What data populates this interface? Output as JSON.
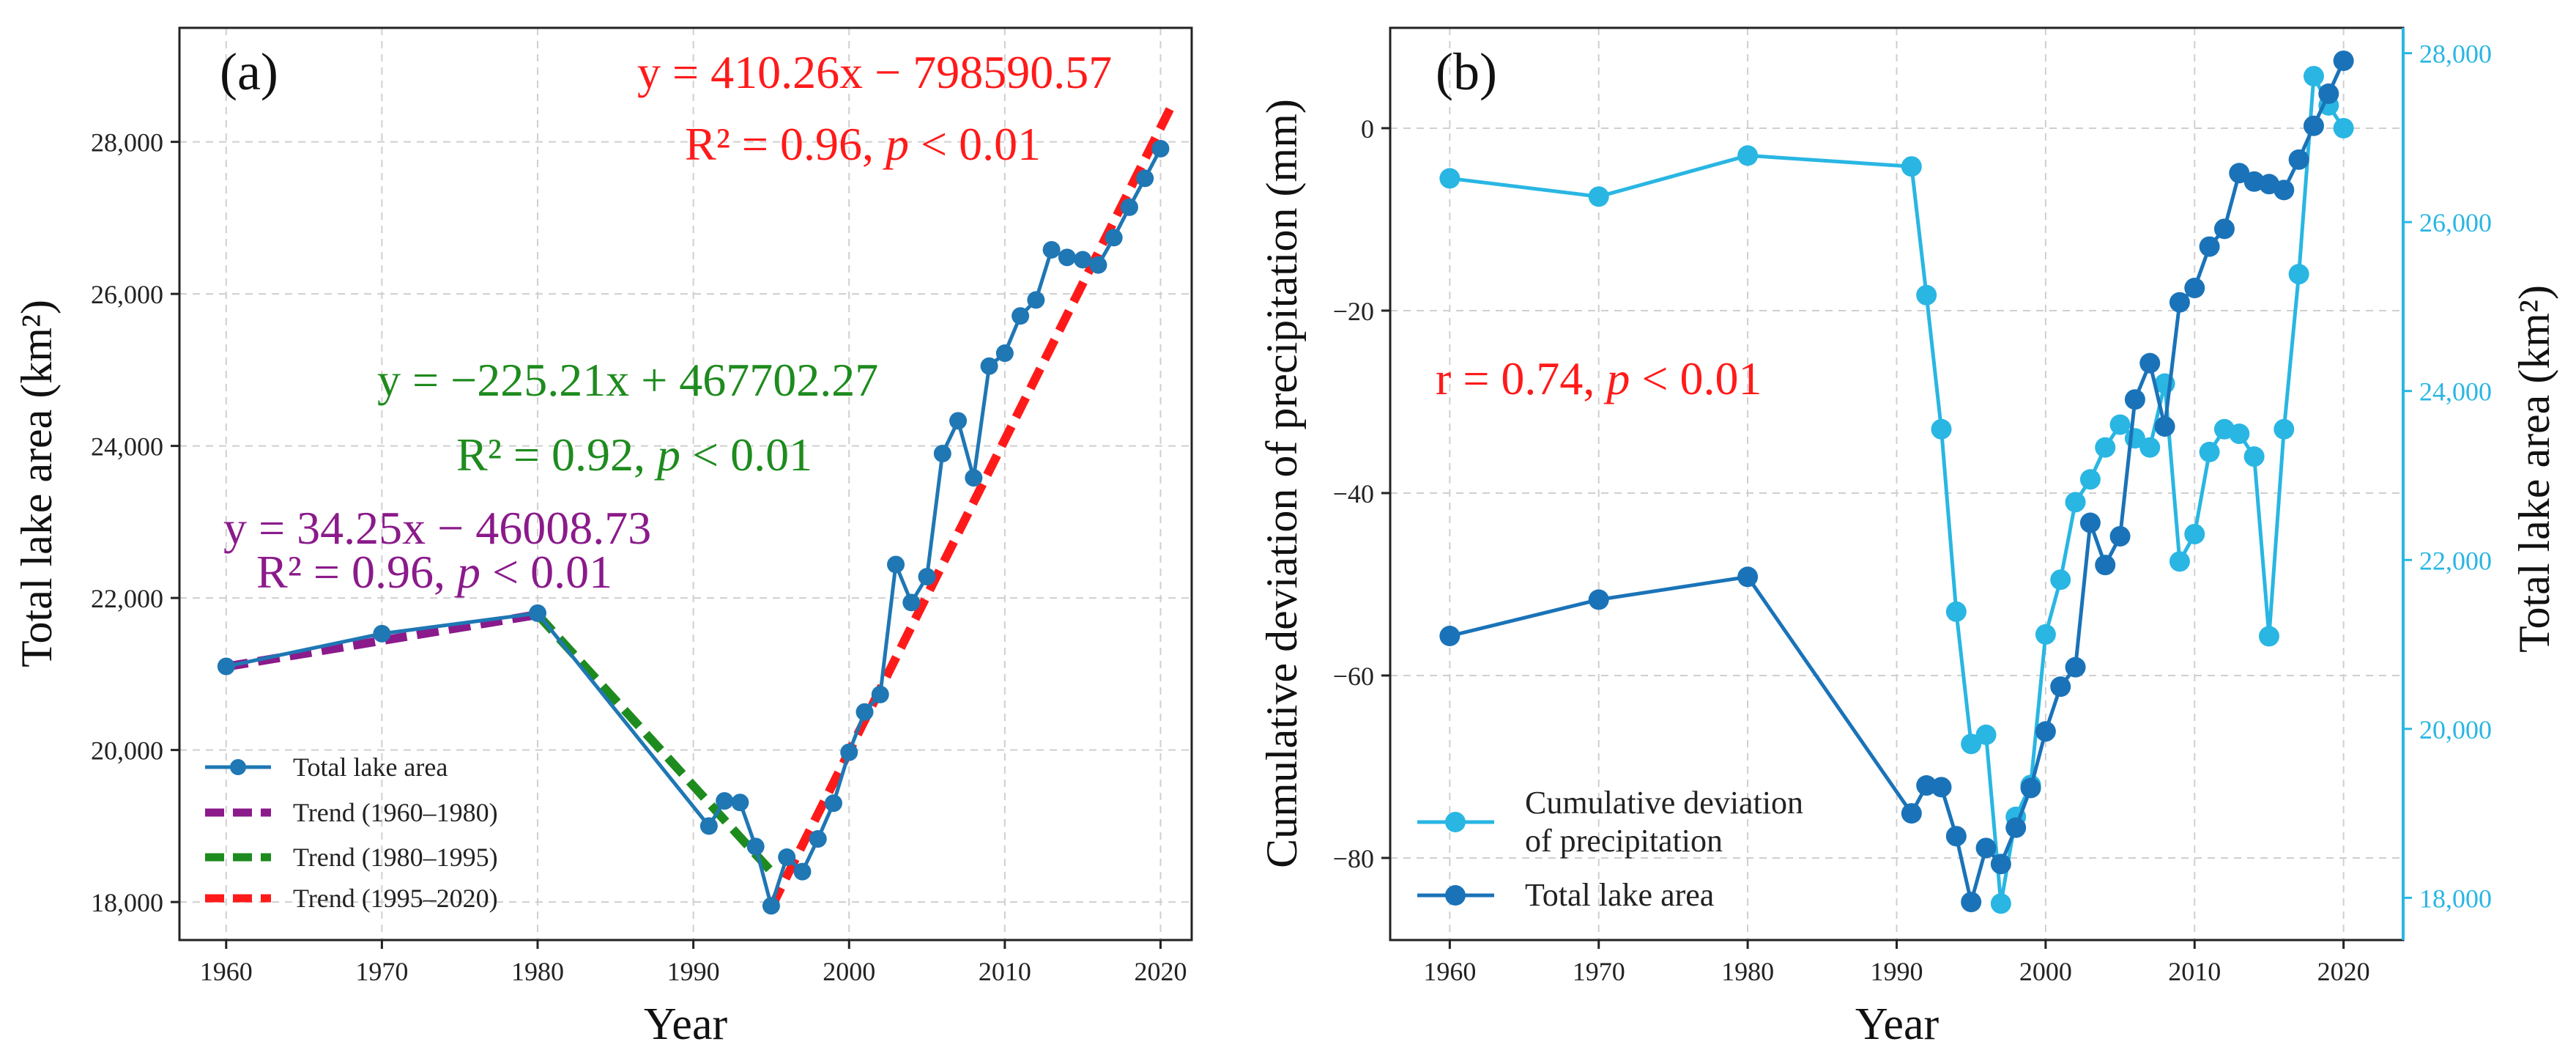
{
  "chart_data": [
    {
      "type": "line",
      "panel_label": "(a)",
      "xlabel": "Year",
      "ylabel": "Total lake area (km²)",
      "xlim": [
        1957,
        2022
      ],
      "ylim": [
        17500,
        29500
      ],
      "xticks": [
        1960,
        1970,
        1980,
        1990,
        2000,
        2010,
        2020
      ],
      "xtick_labels": [
        "1960",
        "1970",
        "1980",
        "1990",
        "2000",
        "2010",
        "2020"
      ],
      "yticks": [
        18000,
        20000,
        22000,
        24000,
        26000,
        28000
      ],
      "ytick_labels": [
        "18,000",
        "20,000",
        "22,000",
        "24,000",
        "26,000",
        "28,000"
      ],
      "grid": true,
      "legend_position": "lower-left",
      "series": [
        {
          "name": "Total lake area",
          "color": "#1f77b4",
          "x": [
            1960,
            1970,
            1980,
            1991,
            1992,
            1993,
            1994,
            1995,
            1996,
            1997,
            1998,
            1999,
            2000,
            2001,
            2002,
            2003,
            2004,
            2005,
            2006,
            2007,
            2008,
            2009,
            2010,
            2011,
            2012,
            2013,
            2014,
            2015,
            2016,
            2017,
            2018,
            2019,
            2020
          ],
          "y": [
            21100,
            21530,
            21800,
            19000,
            19330,
            19310,
            18730,
            17950,
            18590,
            18400,
            18830,
            19300,
            19970,
            20500,
            20730,
            22440,
            21940,
            22280,
            23900,
            24330,
            23580,
            25050,
            25220,
            25710,
            25920,
            26580,
            26480,
            26450,
            26380,
            26740,
            27140,
            27520,
            27910
          ]
        }
      ],
      "trends": [
        {
          "name": "Trend (1960–1980)",
          "color": "#8b1a8b",
          "x": [
            1960,
            1980
          ],
          "y": [
            21096.27,
            21781.27
          ],
          "equation": "y = 34.25x − 46008.73",
          "r2_label": "R² = 0.96, ",
          "p_symbol": "p",
          "p_label": " < 0.01"
        },
        {
          "name": "Trend (1980–1995)",
          "color": "#1e8b1e",
          "x": [
            1980,
            1995
          ],
          "y": [
            21781.27,
            18403.12
          ],
          "equation": "y = −225.21x + 467702.27",
          "r2_label": "R² = 0.92, ",
          "p_symbol": "p",
          "p_label": " < 0.01"
        },
        {
          "name": "Trend (1995–2020)",
          "color": "#ff1a1a",
          "x": [
            1995,
            2020.7
          ],
          "y": [
            17928.13,
            28472
          ],
          "equation": "y = 410.26x − 798590.57",
          "r2_label": "R² = 0.96, ",
          "p_symbol": "p",
          "p_label": " < 0.01"
        }
      ]
    },
    {
      "type": "line",
      "panel_label": "(b)",
      "xlabel": "Year",
      "ylabel_left": "Cumulative deviation of precipitation (mm)",
      "ylabel_right": "Total lake area (km²)",
      "xlim": [
        1956,
        2024
      ],
      "ylim_left": [
        -89,
        11
      ],
      "ylim_right": [
        17500,
        28300
      ],
      "xticks": [
        1960,
        1970,
        1980,
        1990,
        2000,
        2010,
        2020
      ],
      "xtick_labels": [
        "1960",
        "1970",
        "1980",
        "1990",
        "2000",
        "2010",
        "2020"
      ],
      "yticks_left": [
        -80,
        -60,
        -40,
        -20,
        0
      ],
      "yticks_left_labels": [
        "−80",
        "−60",
        "−40",
        "−20",
        "0"
      ],
      "yticks_right": [
        18000,
        20000,
        22000,
        24000,
        26000,
        28000
      ],
      "yticks_right_labels": [
        "18,000",
        "20,000",
        "22,000",
        "24,000",
        "26,000",
        "28,000"
      ],
      "grid": true,
      "legend_position": "lower-left",
      "annotation": {
        "r_label": "r = 0.74, ",
        "p_symbol": "p",
        "p_label": " < 0.01",
        "color": "#ff1a1a"
      },
      "legend": {
        "precip_line1": "Cumulative deviation",
        "precip_line2": "of precipitation",
        "lake": "Total lake area"
      },
      "series": [
        {
          "name": "Cumulative deviation of precipitation",
          "axis": "left",
          "color": "#29b6e3",
          "x": [
            1960,
            1970,
            1980,
            1991,
            1992,
            1993,
            1994,
            1995,
            1996,
            1997,
            1998,
            1999,
            2000,
            2001,
            2002,
            2003,
            2004,
            2005,
            2006,
            2007,
            2008,
            2009,
            2010,
            2011,
            2012,
            2013,
            2014,
            2015,
            2016,
            2017,
            2018,
            2019,
            2020
          ],
          "y": [
            -5.5,
            -7.5,
            -3.0,
            -4.2,
            -18.3,
            -33.0,
            -53.0,
            -67.5,
            -66.5,
            -85.0,
            -75.5,
            -72.0,
            -55.5,
            -49.5,
            -41.0,
            -38.5,
            -35.0,
            -32.5,
            -34.0,
            -35.0,
            -28.0,
            -47.5,
            -44.5,
            -35.5,
            -33.0,
            -33.5,
            -36.0,
            -55.7,
            -33.0,
            -16.0,
            5.7,
            2.5,
            0.0
          ]
        },
        {
          "name": "Total lake area",
          "axis": "right",
          "color": "#1a73b8",
          "x": [
            1960,
            1970,
            1980,
            1991,
            1992,
            1993,
            1994,
            1995,
            1996,
            1997,
            1998,
            1999,
            2000,
            2001,
            2002,
            2003,
            2004,
            2005,
            2006,
            2007,
            2008,
            2009,
            2010,
            2011,
            2012,
            2013,
            2014,
            2015,
            2016,
            2017,
            2018,
            2019,
            2020
          ],
          "y": [
            21100,
            21530,
            21800,
            19000,
            19330,
            19310,
            18730,
            17950,
            18590,
            18400,
            18830,
            19300,
            19970,
            20500,
            20730,
            22440,
            21940,
            22280,
            23900,
            24330,
            23580,
            25050,
            25220,
            25710,
            25920,
            26580,
            26480,
            26450,
            26380,
            26740,
            27140,
            27520,
            27910
          ]
        }
      ]
    }
  ]
}
